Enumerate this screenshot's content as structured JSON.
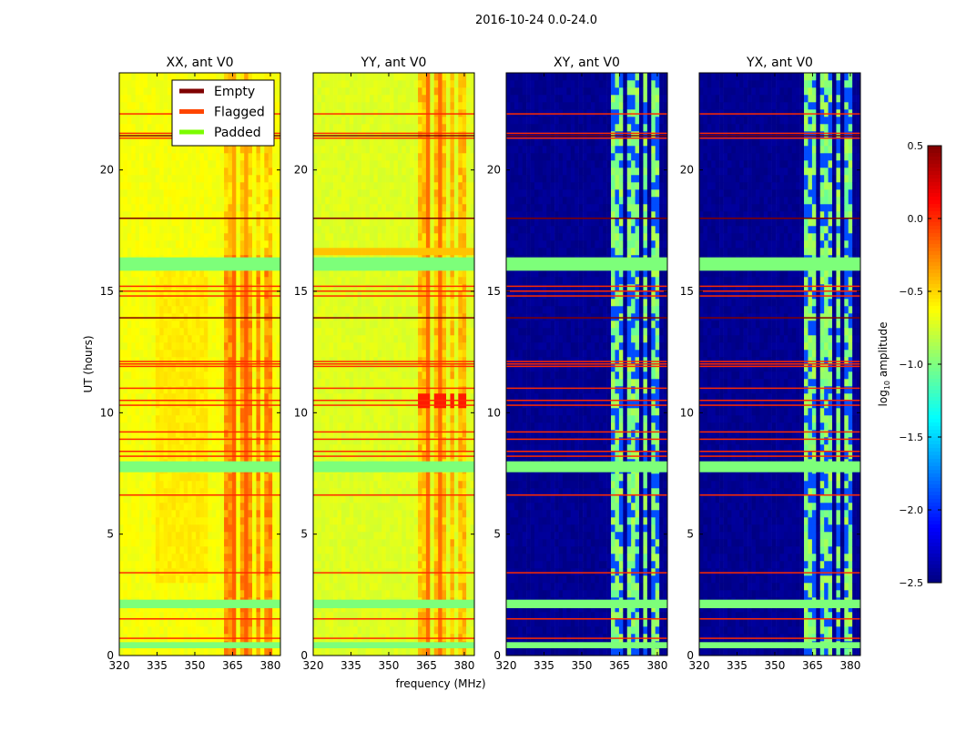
{
  "chart_data": {
    "type": "heatmap",
    "suptitle": "2016-10-24 0.0-24.0",
    "xlabel": "frequency (MHz)",
    "ylabel": "UT (hours)",
    "xlim": [
      320,
      384
    ],
    "ylim": [
      0,
      24
    ],
    "xticks": [
      320,
      335,
      350,
      365,
      380
    ],
    "yticks": [
      0,
      5,
      10,
      15,
      20
    ],
    "panels": [
      {
        "title": "XX, ant V0",
        "base_log10": -0.65,
        "band_log10": -0.3,
        "peak_log10": -0.15
      },
      {
        "title": "YY, ant V0",
        "base_log10": -0.72,
        "band_log10": -0.45,
        "peak_log10": -0.2
      },
      {
        "title": "XY, ant V0",
        "base_log10": -2.45,
        "band_log10": -0.95,
        "peak_log10": -0.7
      },
      {
        "title": "YX, ant V0",
        "base_log10": -2.45,
        "band_log10": -0.95,
        "peak_log10": -0.7
      }
    ],
    "bright_band_mhz": [
      [
        362,
        367
      ],
      [
        368.5,
        372
      ],
      [
        374,
        376.5
      ],
      [
        377,
        380
      ]
    ],
    "padded_ut_bands": [
      [
        0.3,
        0.55
      ],
      [
        1.95,
        2.3
      ],
      [
        7.55,
        8.0
      ],
      [
        15.85,
        16.4
      ]
    ],
    "flagged_ut_hours": [
      0.7,
      1.5,
      3.4,
      6.6,
      8.2,
      8.4,
      8.9,
      9.2,
      10.3,
      10.5,
      11.0,
      11.9,
      12.0,
      12.1,
      14.8,
      15.0,
      15.2,
      21.3,
      21.5,
      22.3
    ],
    "empty_ut_hours": [
      13.9,
      18.0,
      21.4
    ],
    "legend": {
      "position": "top-right of first panel",
      "entries": [
        {
          "label": "Empty",
          "color": "#800000"
        },
        {
          "label": "Flagged",
          "color": "#ff4500"
        },
        {
          "label": "Padded",
          "color": "#7cfc00"
        }
      ]
    },
    "colorbar": {
      "range": [
        -2.5,
        0.5
      ],
      "ticks": [
        "0.5",
        "0.0",
        "−0.5",
        "−1.0",
        "−1.5",
        "−2.0",
        "−2.5"
      ],
      "tick_values": [
        0.5,
        0.0,
        -0.5,
        -1.0,
        -1.5,
        -2.0,
        -2.5
      ],
      "label_main": "log",
      "label_sub": "10",
      "label_rest": " amplitude",
      "colormap": "jet"
    }
  }
}
